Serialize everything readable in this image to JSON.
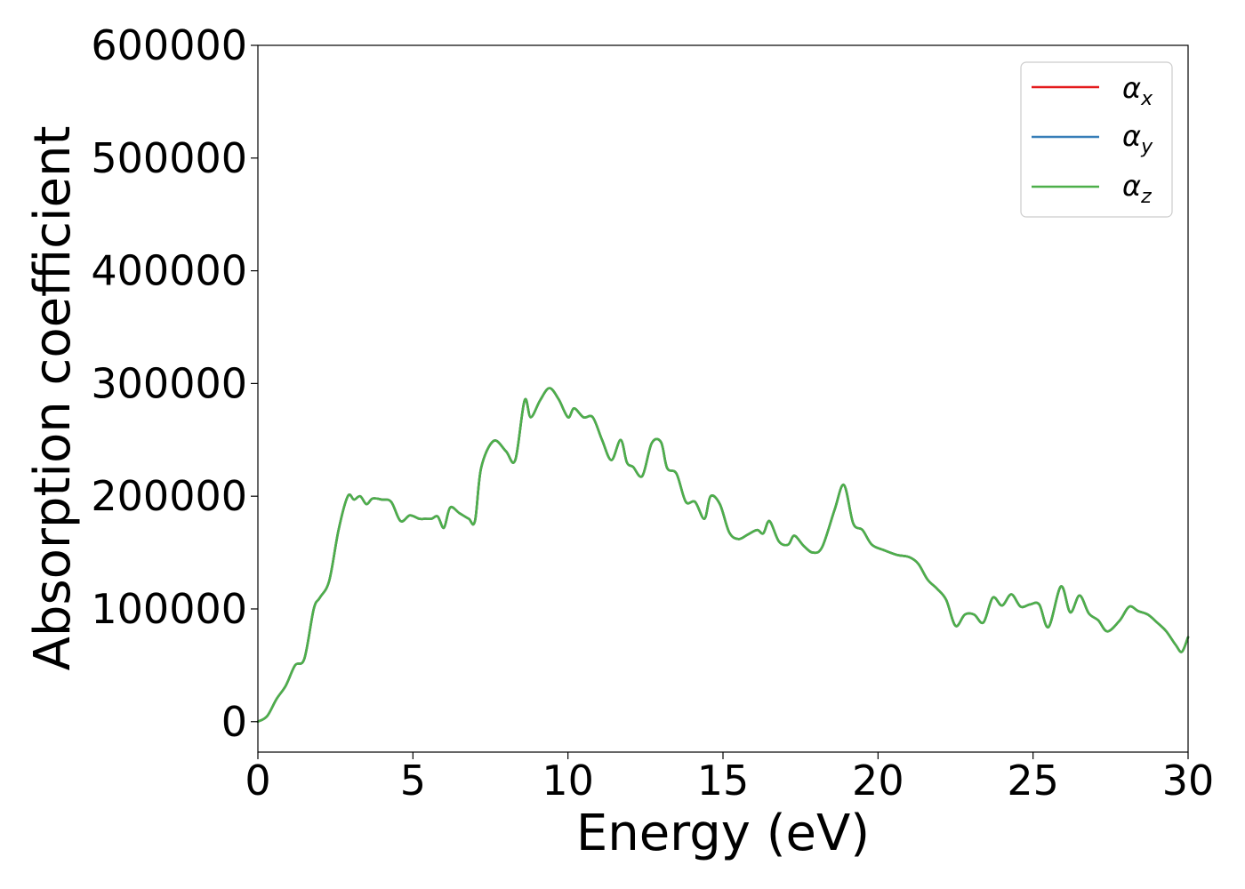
{
  "chart_data": {
    "type": "line",
    "title": "",
    "xlabel": "Energy (eV)",
    "ylabel": "Absorption coefficient",
    "xlim": [
      0,
      30
    ],
    "ylim": [
      -27000,
      600000
    ],
    "xticks": [
      0,
      5,
      10,
      15,
      20,
      25,
      30
    ],
    "yticks": [
      0,
      100000,
      200000,
      300000,
      400000,
      500000,
      600000
    ],
    "grid": false,
    "legend_position": "top-right",
    "series": [
      {
        "name": "x",
        "color": "#e41a1c"
      },
      {
        "name": "y",
        "color": "#377eb8"
      },
      {
        "name": "z",
        "color": "#4daf4a"
      }
    ],
    "x": [
      0,
      0.3,
      0.6,
      0.9,
      1.2,
      1.5,
      1.8,
      2.0,
      2.3,
      2.6,
      2.9,
      3.1,
      3.3,
      3.5,
      3.7,
      4.0,
      4.3,
      4.6,
      4.9,
      5.2,
      5.4,
      5.6,
      5.8,
      6.0,
      6.2,
      6.5,
      6.8,
      7.0,
      7.2,
      7.6,
      8.0,
      8.3,
      8.6,
      8.8,
      9.1,
      9.4,
      9.7,
      10.0,
      10.2,
      10.5,
      10.8,
      11.1,
      11.4,
      11.7,
      11.9,
      12.1,
      12.4,
      12.7,
      13.0,
      13.2,
      13.5,
      13.8,
      14.1,
      14.4,
      14.6,
      14.9,
      15.2,
      15.5,
      15.8,
      16.1,
      16.3,
      16.5,
      16.8,
      17.1,
      17.3,
      17.6,
      17.9,
      18.2,
      18.6,
      18.9,
      19.2,
      19.5,
      19.8,
      20.2,
      20.6,
      21.0,
      21.3,
      21.6,
      21.9,
      22.2,
      22.5,
      22.8,
      23.1,
      23.4,
      23.7,
      24.0,
      24.3,
      24.6,
      24.9,
      25.2,
      25.5,
      25.9,
      26.2,
      26.5,
      26.8,
      27.1,
      27.4,
      27.8,
      28.1,
      28.4,
      28.7,
      29.0,
      29.3,
      29.6,
      29.8,
      30.0
    ],
    "values": [
      0,
      5000,
      20000,
      32000,
      50000,
      56000,
      100000,
      110000,
      125000,
      170000,
      200000,
      197000,
      200000,
      193000,
      198000,
      197000,
      195000,
      178000,
      183000,
      180000,
      180000,
      180000,
      182000,
      172000,
      190000,
      185000,
      180000,
      178000,
      225000,
      249000,
      240000,
      232000,
      285000,
      270000,
      285000,
      296000,
      286000,
      270000,
      278000,
      270000,
      270000,
      250000,
      232000,
      250000,
      230000,
      226000,
      218000,
      247000,
      248000,
      225000,
      220000,
      195000,
      195000,
      180000,
      200000,
      193000,
      168000,
      162000,
      166000,
      170000,
      167000,
      178000,
      160000,
      157000,
      165000,
      156000,
      150000,
      155000,
      188000,
      210000,
      176000,
      170000,
      157000,
      152000,
      148000,
      146000,
      140000,
      126000,
      118000,
      108000,
      85000,
      95000,
      95000,
      88000,
      110000,
      103000,
      113000,
      102000,
      104000,
      104000,
      84000,
      120000,
      97000,
      112000,
      96000,
      90000,
      80000,
      90000,
      102000,
      98000,
      95000,
      88000,
      80000,
      68000,
      62000,
      75000
    ]
  },
  "legend": {
    "symbol": "α",
    "items": [
      "x",
      "y",
      "z"
    ]
  }
}
